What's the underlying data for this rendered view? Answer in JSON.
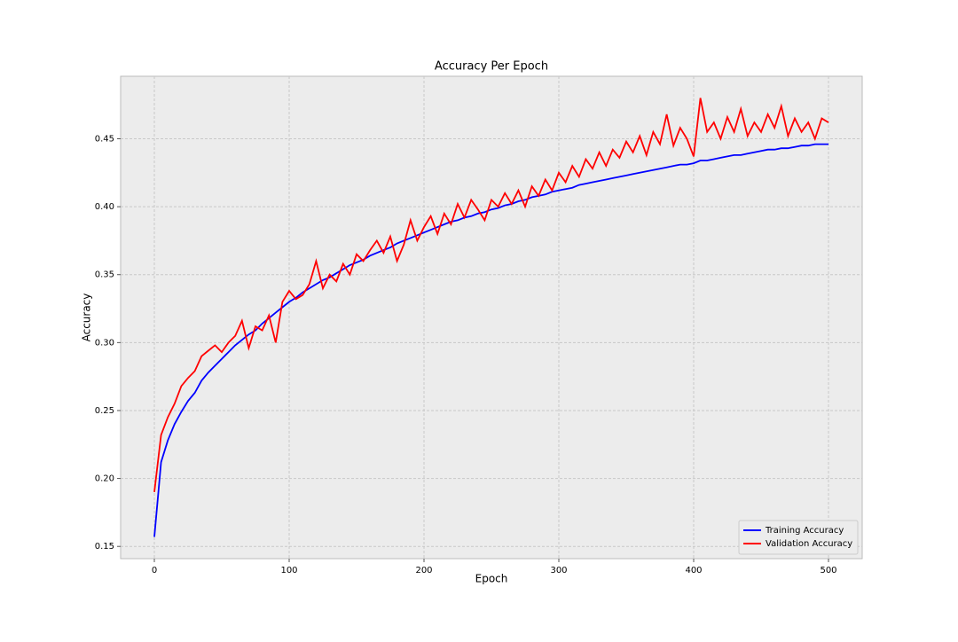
{
  "chart_data": {
    "type": "line",
    "title": "Accuracy Per Epoch",
    "x_label": "Epoch",
    "y_label": "Accuracy",
    "x": [
      0,
      5,
      10,
      15,
      20,
      25,
      30,
      35,
      40,
      45,
      50,
      55,
      60,
      65,
      70,
      75,
      80,
      85,
      90,
      95,
      100,
      105,
      110,
      115,
      120,
      125,
      130,
      135,
      140,
      145,
      150,
      155,
      160,
      165,
      170,
      175,
      180,
      185,
      190,
      195,
      200,
      205,
      210,
      215,
      220,
      225,
      230,
      235,
      240,
      245,
      250,
      255,
      260,
      265,
      270,
      275,
      280,
      285,
      290,
      295,
      300,
      305,
      310,
      315,
      320,
      325,
      330,
      335,
      340,
      345,
      350,
      355,
      360,
      365,
      370,
      375,
      380,
      385,
      390,
      395,
      400,
      405,
      410,
      415,
      420,
      425,
      430,
      435,
      440,
      445,
      450,
      455,
      460,
      465,
      470,
      475,
      480,
      485,
      490,
      495,
      500
    ],
    "series": [
      {
        "name": "Training Accuracy",
        "color": "#0000ff",
        "values": [
          0.157,
          0.212,
          0.228,
          0.24,
          0.249,
          0.257,
          0.263,
          0.272,
          0.278,
          0.283,
          0.288,
          0.293,
          0.298,
          0.302,
          0.306,
          0.309,
          0.314,
          0.318,
          0.322,
          0.326,
          0.33,
          0.333,
          0.337,
          0.34,
          0.343,
          0.346,
          0.348,
          0.351,
          0.354,
          0.357,
          0.359,
          0.361,
          0.364,
          0.366,
          0.368,
          0.37,
          0.373,
          0.375,
          0.377,
          0.379,
          0.381,
          0.383,
          0.385,
          0.387,
          0.389,
          0.39,
          0.392,
          0.393,
          0.395,
          0.396,
          0.398,
          0.399,
          0.401,
          0.402,
          0.404,
          0.405,
          0.407,
          0.408,
          0.409,
          0.411,
          0.412,
          0.413,
          0.414,
          0.416,
          0.417,
          0.418,
          0.419,
          0.42,
          0.421,
          0.422,
          0.423,
          0.424,
          0.425,
          0.426,
          0.427,
          0.428,
          0.429,
          0.43,
          0.431,
          0.431,
          0.432,
          0.434,
          0.434,
          0.435,
          0.436,
          0.437,
          0.438,
          0.438,
          0.439,
          0.44,
          0.441,
          0.442,
          0.442,
          0.443,
          0.443,
          0.444,
          0.445,
          0.445,
          0.446,
          0.446,
          0.446
        ]
      },
      {
        "name": "Validation Accuracy",
        "color": "#ff0000",
        "values": [
          0.19,
          0.232,
          0.245,
          0.255,
          0.268,
          0.274,
          0.279,
          0.29,
          0.294,
          0.298,
          0.293,
          0.3,
          0.305,
          0.316,
          0.296,
          0.312,
          0.309,
          0.32,
          0.3,
          0.33,
          0.338,
          0.332,
          0.335,
          0.343,
          0.36,
          0.34,
          0.35,
          0.345,
          0.358,
          0.35,
          0.365,
          0.36,
          0.368,
          0.375,
          0.366,
          0.378,
          0.36,
          0.372,
          0.39,
          0.375,
          0.385,
          0.393,
          0.38,
          0.395,
          0.387,
          0.402,
          0.392,
          0.405,
          0.398,
          0.39,
          0.405,
          0.4,
          0.41,
          0.402,
          0.412,
          0.4,
          0.415,
          0.408,
          0.42,
          0.412,
          0.425,
          0.418,
          0.43,
          0.422,
          0.435,
          0.428,
          0.44,
          0.43,
          0.442,
          0.436,
          0.448,
          0.44,
          0.452,
          0.438,
          0.455,
          0.446,
          0.468,
          0.445,
          0.458,
          0.45,
          0.437,
          0.48,
          0.455,
          0.462,
          0.45,
          0.466,
          0.455,
          0.472,
          0.452,
          0.462,
          0.455,
          0.468,
          0.458,
          0.474,
          0.452,
          0.465,
          0.455,
          0.462,
          0.45,
          0.465,
          0.462
        ]
      }
    ],
    "xlim": [
      -25,
      525
    ],
    "ylim": [
      0.141,
      0.496
    ],
    "xticks": [
      0,
      100,
      200,
      300,
      400,
      500
    ],
    "yticks": [
      0.15,
      {
        "value": 0.2,
        "label": "0.20"
      },
      0.25,
      {
        "value": 0.3,
        "label": "0.30"
      },
      0.35,
      {
        "value": 0.4,
        "label": "0.40"
      },
      0.45
    ],
    "grid": true,
    "legend": "lower right"
  }
}
